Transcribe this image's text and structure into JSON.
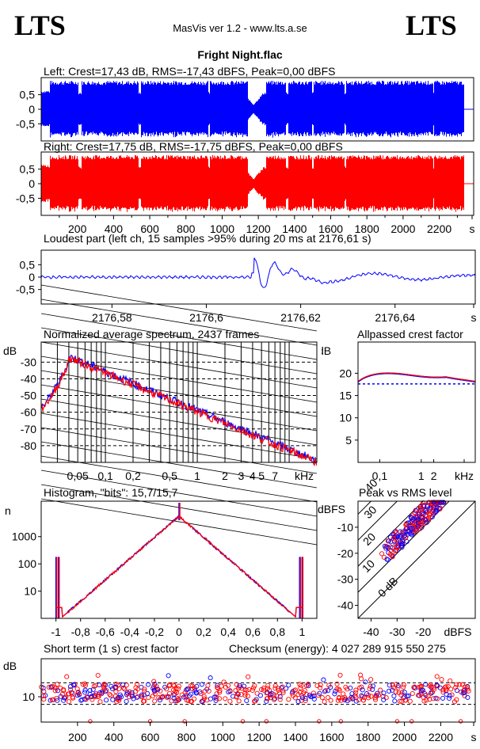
{
  "header": {
    "logo_left": "LTS",
    "logo_right": "LTS",
    "app": "MasVis ver 1.2 - www.lts.a.se",
    "file": "Fright Night.flac"
  },
  "colors": {
    "left": "#0000ff",
    "right": "#ff0000",
    "frame": "#000000"
  },
  "chart_data": [
    {
      "type": "area",
      "title": "Left: Crest=17,43 dB, RMS=-17,43 dBFS, Peak=0,00 dBFS",
      "ylim": [
        -1,
        1
      ],
      "yticks": [
        "0,5",
        "0",
        "-0,5"
      ],
      "series": [
        {
          "name": "Left",
          "color": "#0000ff"
        }
      ],
      "xlim_s": [
        0,
        2390
      ]
    },
    {
      "type": "area",
      "title": "Right: Crest=17,75 dB, RMS=-17,75 dBFS, Peak=0,00 dBFS",
      "ylim": [
        -1,
        1
      ],
      "yticks": [
        "0,5",
        "0",
        "-0,5"
      ],
      "series": [
        {
          "name": "Right",
          "color": "#ff0000"
        }
      ],
      "xticks": [
        "200",
        "400",
        "600",
        "800",
        "1000",
        "1200",
        "1400",
        "1600",
        "1800",
        "2000",
        "2200",
        "s"
      ]
    },
    {
      "type": "line",
      "title": "Loudest part (left  ch, 15 samples >95% during 20 ms at 2176,61 s)",
      "ylim": [
        -1,
        1
      ],
      "yticks": [
        "0,5",
        "0",
        "-0,5"
      ],
      "xticks": [
        "2176,58",
        "2176,6",
        "2176,62",
        "2176,64",
        "s"
      ]
    },
    {
      "type": "line",
      "title": "Normalized average spectrum, 2437 frames",
      "ylabel": "dB",
      "yticks": [
        "-30",
        "-40",
        "-50",
        "-60",
        "-70",
        "-80"
      ],
      "xticks": [
        "0,05",
        "0,1",
        "0,2",
        "0,5",
        "1",
        "2",
        "3",
        "4",
        "5",
        "7",
        "kHz"
      ]
    },
    {
      "type": "line",
      "title": "Allpassed crest factor",
      "ylabel": "dB",
      "yticks": [
        "20",
        "15",
        "10",
        "5"
      ],
      "xticks": [
        "0,1",
        "1",
        "2",
        "kHz"
      ],
      "dashed_ref_db": 17.6,
      "curve_db": 19.5
    },
    {
      "type": "line",
      "title": "Histogram, \"bits\": 15,7/15,7",
      "ylabel": "n",
      "yticks": [
        "1000",
        "100",
        "10"
      ],
      "xticks": [
        "-1",
        "-0,8",
        "-0,6",
        "-0,4",
        "-0,2",
        "0",
        "0,2",
        "0,4",
        "0,6",
        "0,8",
        "1"
      ]
    },
    {
      "type": "scatter",
      "title": "Peak vs RMS level",
      "ylabel": "dBFS",
      "yticks": [
        "-10",
        "-20",
        "-30",
        "-40"
      ],
      "xticks": [
        "-40",
        "-30",
        "-20",
        "dBFS"
      ],
      "diag_labels": [
        "40",
        "30",
        "20",
        "10",
        "0 dB"
      ]
    },
    {
      "type": "scatter",
      "title": "Short term (1 s) crest factor",
      "note": "Checksum (energy):  4 027 289 915 550 275",
      "ylabel": "dB",
      "yticks": [
        "10"
      ],
      "xticks": [
        "200",
        "400",
        "600",
        "800",
        "1000",
        "1200",
        "1400",
        "1600",
        "1800",
        "2000",
        "2200",
        "s"
      ]
    }
  ]
}
